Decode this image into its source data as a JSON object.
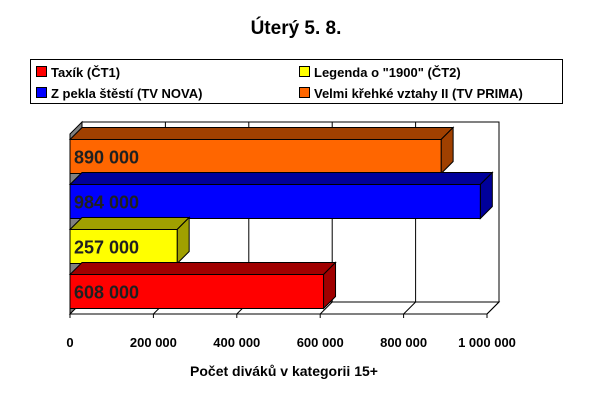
{
  "title": "Úterý 5. 8.",
  "chart_data": {
    "type": "bar",
    "orientation": "horizontal",
    "title": "Úterý 5. 8.",
    "xlabel": "Počet diváků v kategorii 15+",
    "ylabel": "",
    "xlim": [
      0,
      1000000
    ],
    "xticks": [
      0,
      200000,
      400000,
      600000,
      800000,
      1000000
    ],
    "xtick_labels": [
      "0",
      "200 000",
      "400 000",
      "600 000",
      "800 000",
      "1 000 000"
    ],
    "grid": true,
    "three_d": true,
    "legend_position": "top",
    "series": [
      {
        "name": "Taxík (ČT1)",
        "value": 608000,
        "label": "608 000",
        "color": "#ff0000",
        "side_color": "#a00000"
      },
      {
        "name": "Legenda o \"1900\" (ČT2)",
        "value": 257000,
        "label": "257 000",
        "color": "#ffff00",
        "side_color": "#a0a000"
      },
      {
        "name": "Z pekla štěstí (TV NOVA)",
        "value": 984000,
        "label": "984 000",
        "color": "#0000ff",
        "side_color": "#00009a"
      },
      {
        "name": "Velmi křehké vztahy II (TV PRIMA)",
        "value": 890000,
        "label": "890 000",
        "color": "#ff6600",
        "side_color": "#a04000"
      }
    ],
    "legend_order": [
      0,
      1,
      2,
      3
    ]
  }
}
